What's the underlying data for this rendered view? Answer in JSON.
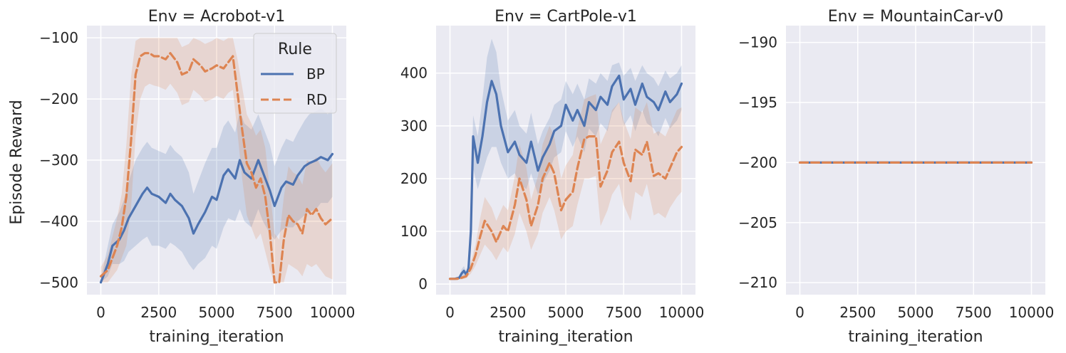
{
  "figure": {
    "ylabel": "Episode Reward",
    "xlabel": "training_iteration"
  },
  "legend": {
    "title": "Rule",
    "items": [
      {
        "name": "BP",
        "color": "#4c72b0",
        "dash": "solid"
      },
      {
        "name": "RD",
        "color": "#dd8452",
        "dash": "dashed"
      }
    ]
  },
  "colors": {
    "panel_bg": "#eaeaf2",
    "grid": "#ffffff",
    "bp": "#4c72b0",
    "rd": "#dd8452"
  },
  "chart_data": [
    {
      "type": "line",
      "title": "Env = Acrobot-v1",
      "xlabel": "training_iteration",
      "ylabel": "Episode Reward",
      "xlim": [
        -600,
        10600
      ],
      "ylim": [
        -520,
        -80
      ],
      "xticks": [
        0,
        2500,
        5000,
        7500,
        10000
      ],
      "xtick_labels": [
        "0",
        "2500",
        "5000",
        "7500",
        "10000"
      ],
      "yticks": [
        -500,
        -400,
        -300,
        -200,
        -100
      ],
      "ytick_labels": [
        "−500",
        "−400",
        "−300",
        "−200",
        "−100"
      ],
      "grid": true,
      "legend": "top-right",
      "series": [
        {
          "name": "BP",
          "x": [
            0,
            300,
            500,
            800,
            1000,
            1200,
            1500,
            1800,
            2000,
            2200,
            2500,
            2800,
            3000,
            3200,
            3500,
            3800,
            4000,
            4200,
            4500,
            4800,
            5000,
            5300,
            5500,
            5800,
            6000,
            6200,
            6500,
            6800,
            7000,
            7300,
            7500,
            7800,
            8000,
            8300,
            8500,
            8800,
            9000,
            9300,
            9500,
            9800,
            10000
          ],
          "y": [
            -500,
            -470,
            -440,
            -430,
            -415,
            -395,
            -375,
            -355,
            -345,
            -355,
            -360,
            -370,
            -355,
            -365,
            -375,
            -395,
            -420,
            -405,
            -385,
            -360,
            -365,
            -325,
            -315,
            -330,
            -300,
            -320,
            -330,
            -300,
            -320,
            -350,
            -375,
            -345,
            -335,
            -340,
            -325,
            -310,
            -305,
            -300,
            -295,
            -300,
            -290
          ],
          "lower": [
            -500,
            -490,
            -470,
            -470,
            -465,
            -450,
            -440,
            -430,
            -425,
            -440,
            -440,
            -445,
            -435,
            -440,
            -450,
            -470,
            -480,
            -470,
            -460,
            -440,
            -445,
            -410,
            -395,
            -400,
            -380,
            -400,
            -410,
            -380,
            -400,
            -420,
            -430,
            -415,
            -410,
            -410,
            -400,
            -390,
            -385,
            -380,
            -370,
            -370,
            -360
          ],
          "upper": [
            -495,
            -440,
            -405,
            -385,
            -365,
            -335,
            -300,
            -280,
            -270,
            -280,
            -285,
            -290,
            -275,
            -285,
            -295,
            -320,
            -355,
            -335,
            -305,
            -280,
            -280,
            -245,
            -235,
            -255,
            -220,
            -240,
            -250,
            -225,
            -245,
            -275,
            -310,
            -280,
            -265,
            -270,
            -255,
            -235,
            -225,
            -220,
            -215,
            -225,
            -215
          ]
        },
        {
          "name": "RD",
          "x": [
            0,
            300,
            500,
            700,
            900,
            1100,
            1300,
            1500,
            1700,
            1900,
            2100,
            2300,
            2500,
            2800,
            3000,
            3300,
            3500,
            3800,
            4000,
            4300,
            4500,
            4800,
            5000,
            5300,
            5500,
            5700,
            5900,
            6100,
            6300,
            6500,
            6700,
            6900,
            7100,
            7300,
            7500,
            7700,
            7900,
            8100,
            8300,
            8500,
            8700,
            8900,
            9100,
            9300,
            9500,
            9700,
            10000
          ],
          "y": [
            -490,
            -480,
            -460,
            -440,
            -410,
            -360,
            -270,
            -160,
            -130,
            -125,
            -125,
            -130,
            -130,
            -135,
            -125,
            -140,
            -160,
            -155,
            -135,
            -145,
            -155,
            -150,
            -145,
            -150,
            -140,
            -130,
            -190,
            -250,
            -305,
            -320,
            -345,
            -330,
            -360,
            -420,
            -500,
            -500,
            -430,
            -390,
            -400,
            -405,
            -420,
            -380,
            -390,
            -380,
            -395,
            -405,
            -395
          ],
          "lower": [
            -500,
            -500,
            -490,
            -480,
            -460,
            -440,
            -380,
            -260,
            -200,
            -180,
            -175,
            -178,
            -180,
            -185,
            -175,
            -190,
            -210,
            -205,
            -185,
            -195,
            -205,
            -200,
            -195,
            -200,
            -190,
            -185,
            -255,
            -330,
            -390,
            -410,
            -430,
            -420,
            -450,
            -480,
            -500,
            -500,
            -500,
            -470,
            -475,
            -480,
            -490,
            -470,
            -475,
            -470,
            -480,
            -490,
            -495
          ],
          "upper": [
            -475,
            -455,
            -425,
            -395,
            -355,
            -275,
            -165,
            -105,
            -100,
            -100,
            -100,
            -100,
            -100,
            -100,
            -100,
            -100,
            -115,
            -110,
            -100,
            -105,
            -110,
            -105,
            -100,
            -105,
            -100,
            -100,
            -135,
            -180,
            -225,
            -240,
            -260,
            -250,
            -280,
            -350,
            -420,
            -430,
            -360,
            -310,
            -320,
            -325,
            -340,
            -300,
            -305,
            -295,
            -310,
            -320,
            -305
          ]
        }
      ]
    },
    {
      "type": "line",
      "title": "Env = CartPole-v1",
      "xlabel": "training_iteration",
      "ylabel": "",
      "xlim": [
        -600,
        10600
      ],
      "ylim": [
        -20,
        490
      ],
      "xticks": [
        0,
        2500,
        5000,
        7500,
        10000
      ],
      "xtick_labels": [
        "0",
        "2500",
        "5000",
        "7500",
        "10000"
      ],
      "yticks": [
        0,
        100,
        200,
        300,
        400
      ],
      "ytick_labels": [
        "0",
        "100",
        "200",
        "300",
        "400"
      ],
      "grid": true,
      "series": [
        {
          "name": "BP",
          "x": [
            0,
            200,
            400,
            500,
            600,
            700,
            800,
            900,
            1000,
            1200,
            1400,
            1600,
            1800,
            2000,
            2200,
            2500,
            2800,
            3000,
            3300,
            3500,
            3800,
            4000,
            4300,
            4500,
            4800,
            5000,
            5300,
            5500,
            5800,
            6000,
            6300,
            6500,
            6800,
            7000,
            7300,
            7500,
            7800,
            8000,
            8300,
            8500,
            8800,
            9000,
            9300,
            9500,
            9800,
            10000
          ],
          "y": [
            10,
            10,
            12,
            20,
            25,
            18,
            30,
            100,
            280,
            230,
            280,
            345,
            385,
            360,
            300,
            250,
            270,
            245,
            230,
            270,
            215,
            240,
            265,
            290,
            300,
            340,
            310,
            330,
            300,
            345,
            330,
            355,
            340,
            375,
            395,
            350,
            370,
            340,
            380,
            355,
            345,
            330,
            365,
            345,
            360,
            380
          ],
          "lower": [
            8,
            8,
            9,
            13,
            17,
            12,
            20,
            60,
            220,
            180,
            210,
            240,
            260,
            260,
            230,
            200,
            210,
            190,
            180,
            210,
            170,
            190,
            215,
            240,
            250,
            290,
            260,
            280,
            250,
            295,
            280,
            305,
            290,
            325,
            345,
            300,
            320,
            290,
            330,
            305,
            295,
            280,
            315,
            295,
            310,
            330
          ],
          "upper": [
            12,
            12,
            15,
            28,
            34,
            24,
            42,
            150,
            320,
            280,
            350,
            430,
            465,
            440,
            370,
            310,
            330,
            300,
            285,
            325,
            265,
            290,
            315,
            340,
            350,
            385,
            360,
            380,
            350,
            390,
            380,
            400,
            385,
            415,
            420,
            395,
            410,
            385,
            415,
            400,
            390,
            375,
            405,
            390,
            400,
            415
          ]
        },
        {
          "name": "RD",
          "x": [
            0,
            300,
            500,
            700,
            900,
            1100,
            1300,
            1500,
            1800,
            2000,
            2300,
            2500,
            2800,
            3000,
            3300,
            3500,
            3800,
            4000,
            4300,
            4500,
            4800,
            5000,
            5300,
            5500,
            5800,
            6000,
            6300,
            6500,
            6800,
            7000,
            7300,
            7500,
            7800,
            8000,
            8300,
            8500,
            8800,
            9000,
            9300,
            9500,
            9800,
            10000
          ],
          "y": [
            10,
            10,
            12,
            15,
            30,
            55,
            90,
            120,
            100,
            80,
            110,
            100,
            150,
            200,
            160,
            110,
            150,
            200,
            230,
            210,
            140,
            160,
            175,
            220,
            275,
            280,
            280,
            185,
            215,
            250,
            270,
            230,
            195,
            255,
            245,
            270,
            205,
            210,
            200,
            220,
            250,
            260
          ],
          "lower": [
            8,
            8,
            9,
            11,
            20,
            35,
            55,
            75,
            60,
            45,
            70,
            60,
            95,
            135,
            100,
            65,
            95,
            135,
            165,
            140,
            85,
            100,
            110,
            150,
            200,
            200,
            205,
            110,
            140,
            170,
            190,
            150,
            120,
            175,
            165,
            190,
            130,
            135,
            125,
            145,
            165,
            175
          ],
          "upper": [
            12,
            12,
            15,
            20,
            42,
            75,
            125,
            165,
            145,
            120,
            150,
            140,
            205,
            265,
            220,
            160,
            205,
            265,
            300,
            280,
            200,
            225,
            245,
            295,
            350,
            355,
            360,
            265,
            295,
            330,
            345,
            310,
            275,
            335,
            325,
            345,
            285,
            290,
            280,
            300,
            330,
            335
          ]
        }
      ]
    },
    {
      "type": "line",
      "title": "Env = MountainCar-v0",
      "xlabel": "training_iteration",
      "ylabel": "",
      "xlim": [
        -600,
        10600
      ],
      "ylim": [
        -211,
        -188.6
      ],
      "xticks": [
        0,
        2500,
        5000,
        7500,
        10000
      ],
      "xtick_labels": [
        "0",
        "2500",
        "5000",
        "7500",
        "10000"
      ],
      "yticks": [
        -210,
        -205,
        -200,
        -195,
        -190
      ],
      "ytick_labels": [
        "−210",
        "−205",
        "−200",
        "−195",
        "−190"
      ],
      "grid": true,
      "series": [
        {
          "name": "BP",
          "x": [
            0,
            10000
          ],
          "y": [
            -200,
            -200
          ]
        },
        {
          "name": "RD",
          "x": [
            0,
            10000
          ],
          "y": [
            -200,
            -200
          ]
        }
      ]
    }
  ]
}
